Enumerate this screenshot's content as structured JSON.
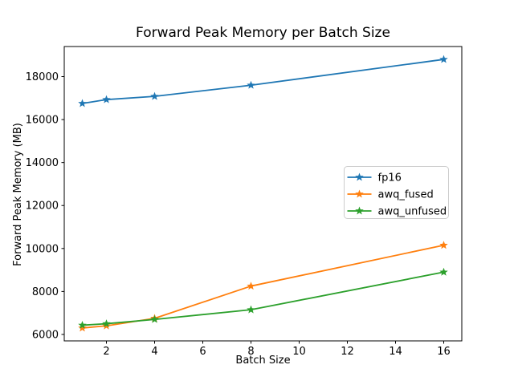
{
  "figure": {
    "background": "#ffffff",
    "frame_color": "#000000",
    "tick_color": "#000000",
    "text_color": "#000000"
  },
  "chart_data": {
    "type": "line",
    "title": "Forward Peak Memory per Batch Size",
    "xlabel": "Batch Size",
    "ylabel": "Forward Peak Memory (MB)",
    "x": [
      1,
      2,
      4,
      8,
      16
    ],
    "series": [
      {
        "name": "fp16",
        "color": "#1f77b4",
        "values": [
          16750,
          16930,
          17080,
          17600,
          18800
        ]
      },
      {
        "name": "awq_fused",
        "color": "#ff7f0e",
        "values": [
          6300,
          6400,
          6750,
          8250,
          10150
        ]
      },
      {
        "name": "awq_unfused",
        "color": "#2ca02c",
        "values": [
          6430,
          6500,
          6700,
          7150,
          8900
        ]
      }
    ],
    "marker": "star",
    "xlim": [
      0.25,
      16.75
    ],
    "ylim": [
      5700,
      19400
    ],
    "xticks": [
      2,
      4,
      6,
      8,
      10,
      12,
      14,
      16
    ],
    "yticks": [
      6000,
      8000,
      10000,
      12000,
      14000,
      16000,
      18000
    ],
    "grid": false,
    "legend": {
      "position": "center right",
      "border_color": "#cccccc",
      "background": "#ffffff"
    }
  }
}
